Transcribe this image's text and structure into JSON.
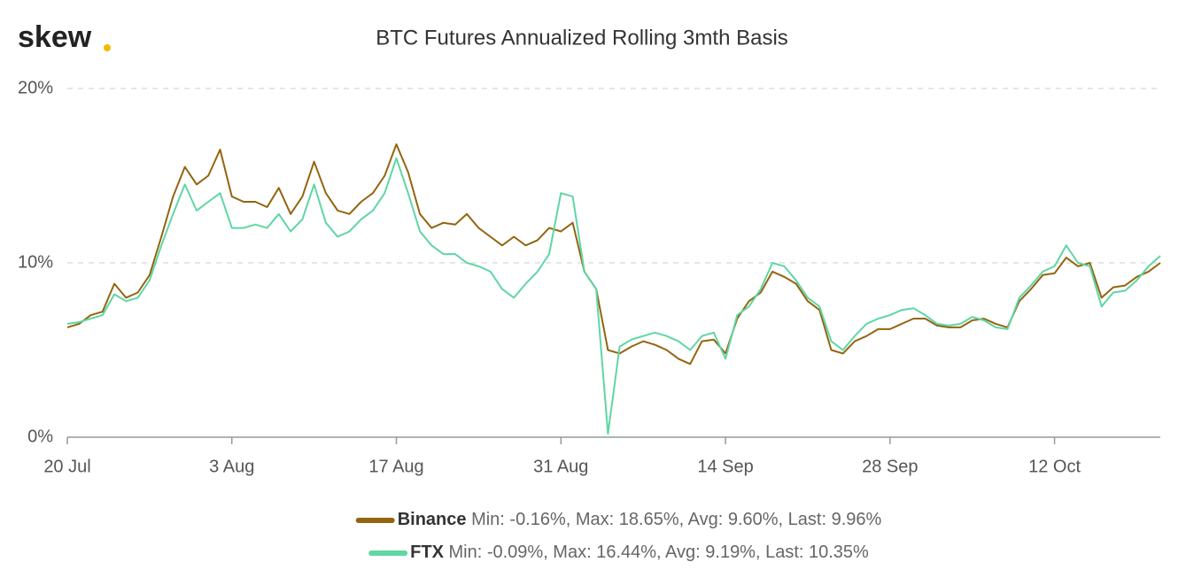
{
  "chart_data": {
    "type": "line",
    "logo": "skew",
    "title": "BTC Futures Annualized Rolling 3mth Basis",
    "categories": [
      "20 Jul",
      "21 Jul",
      "22 Jul",
      "23 Jul",
      "24 Jul",
      "25 Jul",
      "26 Jul",
      "27 Jul",
      "28 Jul",
      "29 Jul",
      "30 Jul",
      "31 Jul",
      "1 Aug",
      "2 Aug",
      "3 Aug",
      "4 Aug",
      "5 Aug",
      "6 Aug",
      "7 Aug",
      "8 Aug",
      "9 Aug",
      "10 Aug",
      "11 Aug",
      "12 Aug",
      "13 Aug",
      "14 Aug",
      "15 Aug",
      "16 Aug",
      "17 Aug",
      "18 Aug",
      "19 Aug",
      "20 Aug",
      "21 Aug",
      "22 Aug",
      "23 Aug",
      "24 Aug",
      "25 Aug",
      "26 Aug",
      "27 Aug",
      "28 Aug",
      "29 Aug",
      "30 Aug",
      "31 Aug",
      "1 Sep",
      "2 Sep",
      "3 Sep",
      "4 Sep",
      "5 Sep",
      "6 Sep",
      "7 Sep",
      "8 Sep",
      "9 Sep",
      "10 Sep",
      "11 Sep",
      "12 Sep",
      "13 Sep",
      "14 Sep",
      "15 Sep",
      "16 Sep",
      "17 Sep",
      "18 Sep",
      "19 Sep",
      "20 Sep",
      "21 Sep",
      "22 Sep",
      "23 Sep",
      "24 Sep",
      "25 Sep",
      "26 Sep",
      "27 Sep",
      "28 Sep",
      "29 Sep",
      "30 Sep",
      "1 Oct",
      "2 Oct",
      "3 Oct",
      "4 Oct",
      "5 Oct",
      "6 Oct",
      "7 Oct",
      "8 Oct",
      "9 Oct",
      "10 Oct",
      "11 Oct",
      "12 Oct",
      "13 Oct",
      "14 Oct",
      "15 Oct",
      "16 Oct",
      "17 Oct",
      "18 Oct",
      "19 Oct",
      "20 Oct",
      "21 Oct"
    ],
    "xticks": [
      "20 Jul",
      "3 Aug",
      "17 Aug",
      "31 Aug",
      "14 Sep",
      "28 Sep",
      "12 Oct"
    ],
    "ylim": [
      0,
      20
    ],
    "yticks": [
      {
        "value": 0,
        "label": "0%"
      },
      {
        "value": 10,
        "label": "10%"
      },
      {
        "value": 20,
        "label": "20%"
      }
    ],
    "grid": true,
    "series": [
      {
        "name": "Binance",
        "stats": "Min: -0.16%, Max: 18.65%, Avg: 9.60%, Last: 9.96%",
        "color": "#93650f",
        "values": [
          6.3,
          6.5,
          7.0,
          7.2,
          8.8,
          8.0,
          8.3,
          9.3,
          11.5,
          13.8,
          15.5,
          14.5,
          15.0,
          16.5,
          13.8,
          13.5,
          13.5,
          13.2,
          14.3,
          12.8,
          13.8,
          15.8,
          14.0,
          13.0,
          12.8,
          13.5,
          14.0,
          15.0,
          16.8,
          15.2,
          12.8,
          12.0,
          12.3,
          12.2,
          12.8,
          12.0,
          11.5,
          11.0,
          11.5,
          11.0,
          11.3,
          12.0,
          11.8,
          12.3,
          9.5,
          8.5,
          5.0,
          4.8,
          5.2,
          5.5,
          5.3,
          5.0,
          4.5,
          4.2,
          5.5,
          5.6,
          4.8,
          6.8,
          7.8,
          8.3,
          9.5,
          9.2,
          8.8,
          7.8,
          7.3,
          5.0,
          4.8,
          5.5,
          5.8,
          6.2,
          6.2,
          6.5,
          6.8,
          6.8,
          6.4,
          6.3,
          6.3,
          6.7,
          6.8,
          6.5,
          6.3,
          7.8,
          8.5,
          9.3,
          9.4,
          10.3,
          9.8,
          10.0,
          8.0,
          8.6,
          8.7,
          9.2,
          9.5,
          10.0
        ]
      },
      {
        "name": "FTX",
        "stats": "Min: -0.09%, Max: 16.44%, Avg: 9.19%, Last: 10.35%",
        "color": "#5fd6a4",
        "values": [
          6.5,
          6.6,
          6.8,
          7.0,
          8.2,
          7.8,
          8.0,
          9.0,
          11.0,
          12.8,
          14.5,
          13.0,
          13.5,
          14.0,
          12.0,
          12.0,
          12.2,
          12.0,
          12.8,
          11.8,
          12.5,
          14.5,
          12.3,
          11.5,
          11.8,
          12.5,
          13.0,
          14.0,
          16.0,
          14.0,
          11.8,
          11.0,
          10.5,
          10.5,
          10.0,
          9.8,
          9.5,
          8.5,
          8.0,
          8.8,
          9.5,
          10.5,
          14.0,
          13.8,
          9.5,
          8.5,
          0.2,
          5.2,
          5.6,
          5.8,
          6.0,
          5.8,
          5.5,
          5.0,
          5.8,
          6.0,
          4.5,
          7.0,
          7.5,
          8.5,
          10.0,
          9.8,
          9.0,
          8.0,
          7.5,
          5.5,
          5.0,
          5.8,
          6.5,
          6.8,
          7.0,
          7.3,
          7.4,
          7.0,
          6.5,
          6.4,
          6.5,
          6.9,
          6.7,
          6.3,
          6.2,
          8.0,
          8.7,
          9.5,
          9.8,
          11.0,
          10.0,
          9.8,
          7.5,
          8.3,
          8.4,
          9.0,
          9.8,
          10.4
        ]
      }
    ]
  }
}
